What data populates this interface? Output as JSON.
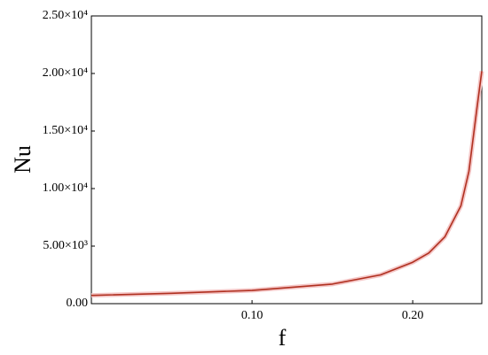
{
  "chart_data": {
    "type": "line",
    "x_label": "f",
    "y_label": "Nu",
    "x": [
      0,
      0.05,
      0.1,
      0.15,
      0.18,
      0.2,
      0.21,
      0.22,
      0.23,
      0.235,
      0.24,
      0.243
    ],
    "series": [
      {
        "name": "Nu",
        "color": "#b03020",
        "values": [
          720,
          900,
          1150,
          1700,
          2500,
          3600,
          4400,
          5800,
          8500,
          11500,
          17000,
          20200
        ]
      }
    ],
    "xlim": [
      0,
      0.243
    ],
    "xticks": [
      {
        "value": 0.1,
        "label": "0.10"
      },
      {
        "value": 0.2,
        "label": "0.20"
      }
    ],
    "ylim": [
      0,
      25000
    ],
    "yticks": [
      {
        "value": 0,
        "label": "0.00"
      },
      {
        "value": 5000,
        "label": "5.00×10³"
      },
      {
        "value": 10000,
        "label": "1.00×10⁴"
      },
      {
        "value": 15000,
        "label": "1.50×10⁴"
      },
      {
        "value": 20000,
        "label": "2.00×10⁴"
      },
      {
        "value": 25000,
        "label": "2.50×10⁴"
      }
    ],
    "grid": false
  }
}
